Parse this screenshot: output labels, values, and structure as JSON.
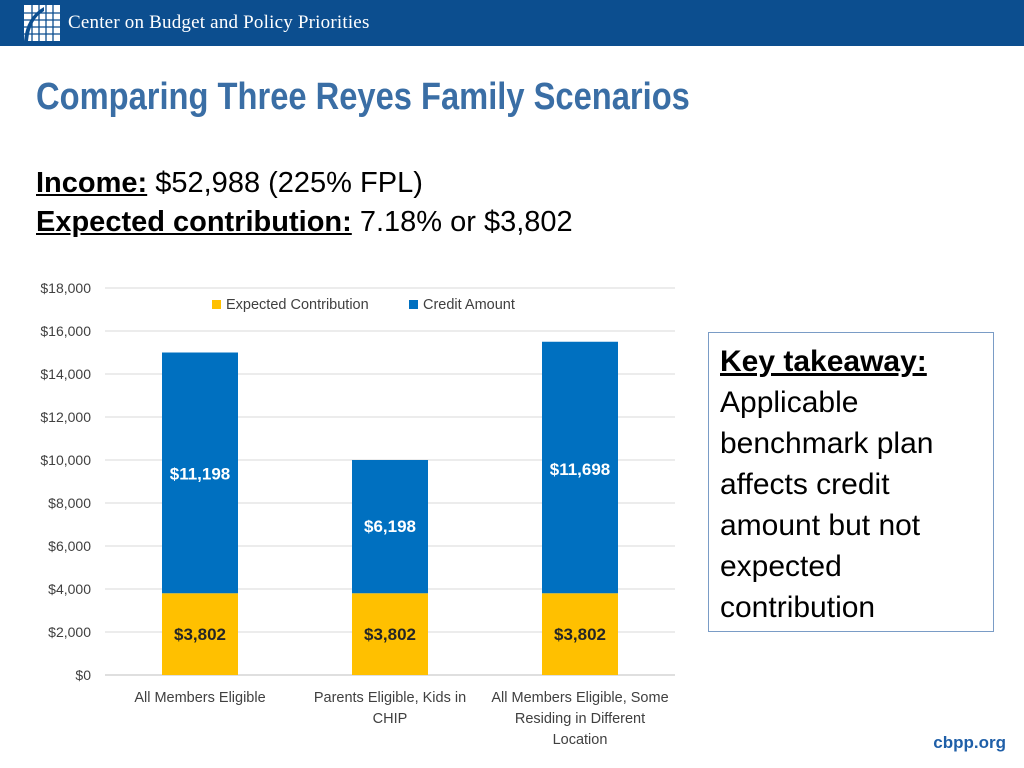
{
  "header": {
    "org_name": "Center on Budget and Policy Priorities",
    "logo_icon": "cbpp-grid-logo"
  },
  "title": "Comparing Three Reyes Family Scenarios",
  "info": {
    "income_label": "Income:",
    "income_value": " $52,988 (225% FPL)",
    "contribution_label": "Expected contribution:",
    "contribution_value": " 7.18% or $3,802"
  },
  "takeaway": {
    "heading": "Key takeaway:",
    "text": "Applicable benchmark plan affects credit amount but not expected contribution"
  },
  "footer": {
    "link": "cbpp.org"
  },
  "chart_data": {
    "type": "bar",
    "stacked": true,
    "categories": [
      [
        "All Members Eligible"
      ],
      [
        "Parents Eligible, Kids in",
        "CHIP"
      ],
      [
        "All Members Eligible, Some",
        "Residing in Different",
        "Location"
      ]
    ],
    "series": [
      {
        "name": "Expected Contribution",
        "color": "#ffc000",
        "values": [
          3802,
          3802,
          3802
        ],
        "labels": [
          "$3,802",
          "$3,802",
          "$3,802"
        ]
      },
      {
        "name": "Credit Amount",
        "color": "#0070c0",
        "values": [
          11198,
          6198,
          11698
        ],
        "labels": [
          "$11,198",
          "$6,198",
          "$11,698"
        ]
      }
    ],
    "yticks": [
      "$0",
      "$2,000",
      "$4,000",
      "$6,000",
      "$8,000",
      "$10,000",
      "$12,000",
      "$14,000",
      "$16,000",
      "$18,000"
    ],
    "ylim": [
      0,
      18000
    ],
    "grid": true,
    "legend": "top-center"
  }
}
